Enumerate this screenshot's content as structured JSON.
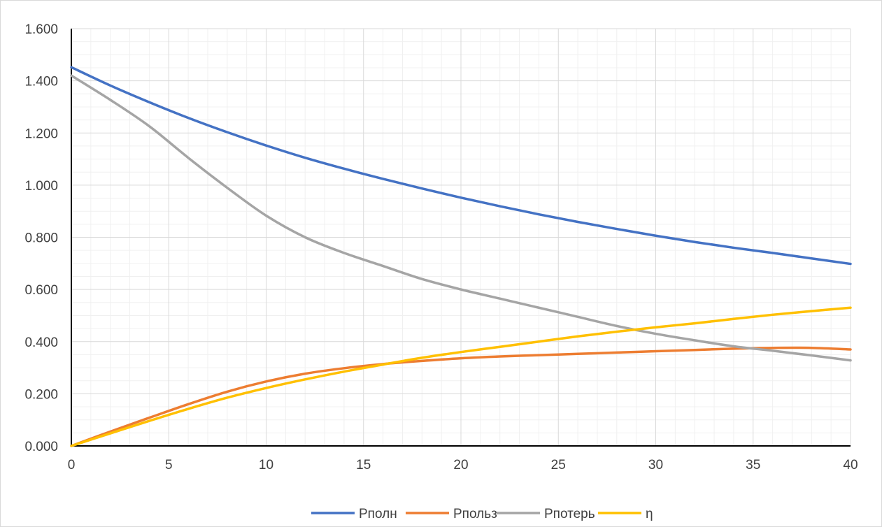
{
  "chart_data": {
    "type": "line",
    "title": "",
    "xlabel": "",
    "ylabel": "",
    "xlim": [
      0,
      40
    ],
    "ylim": [
      0,
      1.6
    ],
    "x_ticks": [
      0,
      5,
      10,
      15,
      20,
      25,
      30,
      35,
      40
    ],
    "y_ticks": [
      "0.000",
      "0.200",
      "0.400",
      "0.600",
      "0.800",
      "1.000",
      "1.200",
      "1.400",
      "1.600"
    ],
    "grid": true,
    "minor_grid": true,
    "legend_position": "bottom",
    "series": [
      {
        "name": "Pполн",
        "color": "#4472C4",
        "points": [
          [
            0,
            1.452
          ],
          [
            2,
            1.382
          ],
          [
            4,
            1.318
          ],
          [
            6,
            1.258
          ],
          [
            8,
            1.203
          ],
          [
            10,
            1.152
          ],
          [
            12,
            1.105
          ],
          [
            14,
            1.063
          ],
          [
            16,
            1.024
          ],
          [
            18,
            0.987
          ],
          [
            20,
            0.952
          ],
          [
            22,
            0.919
          ],
          [
            24,
            0.888
          ],
          [
            26,
            0.859
          ],
          [
            28,
            0.832
          ],
          [
            30,
            0.806
          ],
          [
            32,
            0.782
          ],
          [
            34,
            0.76
          ],
          [
            36,
            0.74
          ],
          [
            38,
            0.719
          ],
          [
            40,
            0.698
          ]
        ]
      },
      {
        "name": "Pпольз",
        "color": "#ED7D31",
        "points": [
          [
            0,
            0.0
          ],
          [
            2,
            0.055
          ],
          [
            4,
            0.108
          ],
          [
            6,
            0.16
          ],
          [
            8,
            0.208
          ],
          [
            10,
            0.247
          ],
          [
            12,
            0.277
          ],
          [
            14,
            0.298
          ],
          [
            16,
            0.314
          ],
          [
            18,
            0.326
          ],
          [
            20,
            0.336
          ],
          [
            22,
            0.343
          ],
          [
            24,
            0.348
          ],
          [
            26,
            0.353
          ],
          [
            28,
            0.358
          ],
          [
            30,
            0.363
          ],
          [
            32,
            0.368
          ],
          [
            34,
            0.373
          ],
          [
            36,
            0.376
          ],
          [
            38,
            0.376
          ],
          [
            40,
            0.37
          ]
        ]
      },
      {
        "name": "Pпотерь",
        "color": "#A5A5A5",
        "points": [
          [
            0,
            1.42
          ],
          [
            2,
            1.327
          ],
          [
            4,
            1.226
          ],
          [
            6,
            1.105
          ],
          [
            8,
            0.99
          ],
          [
            10,
            0.883
          ],
          [
            12,
            0.8
          ],
          [
            14,
            0.74
          ],
          [
            16,
            0.69
          ],
          [
            18,
            0.64
          ],
          [
            20,
            0.6
          ],
          [
            22,
            0.565
          ],
          [
            24,
            0.53
          ],
          [
            26,
            0.495
          ],
          [
            28,
            0.46
          ],
          [
            30,
            0.43
          ],
          [
            32,
            0.405
          ],
          [
            34,
            0.382
          ],
          [
            36,
            0.365
          ],
          [
            38,
            0.347
          ],
          [
            40,
            0.328
          ]
        ]
      },
      {
        "name": "η",
        "color": "#FFC000",
        "points": [
          [
            0,
            0.0
          ],
          [
            2,
            0.048
          ],
          [
            4,
            0.096
          ],
          [
            6,
            0.142
          ],
          [
            8,
            0.185
          ],
          [
            10,
            0.222
          ],
          [
            12,
            0.255
          ],
          [
            14,
            0.285
          ],
          [
            16,
            0.312
          ],
          [
            18,
            0.338
          ],
          [
            20,
            0.36
          ],
          [
            22,
            0.38
          ],
          [
            24,
            0.4
          ],
          [
            26,
            0.42
          ],
          [
            28,
            0.438
          ],
          [
            30,
            0.455
          ],
          [
            32,
            0.47
          ],
          [
            34,
            0.487
          ],
          [
            36,
            0.503
          ],
          [
            38,
            0.517
          ],
          [
            40,
            0.53
          ]
        ]
      }
    ]
  }
}
